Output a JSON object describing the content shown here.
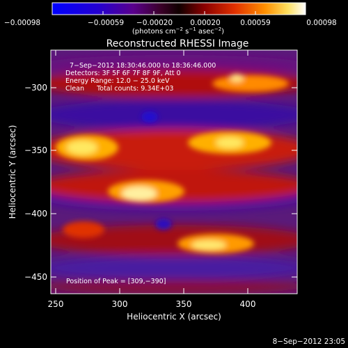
{
  "colorbar": {
    "tick_labels": [
      "−0.00098",
      "−0.00059",
      "−0.00020",
      "0.00020",
      "0.00059",
      "0.00098"
    ],
    "unit_label_parts": [
      "(photons cm",
      "−2",
      " s",
      "−1",
      " asec",
      "−2",
      ")"
    ]
  },
  "image_title": "Reconstructed RHESSI Image",
  "info_lines": [
    "7−Sep−2012 18:30:46.000 to 18:36:46.000",
    "Detectors: 3F 5F 6F 7F 8F 9F, Att 0",
    "Energy Range: 12.0 − 25.0 keV",
    "Clean      Total counts: 9.34E+03"
  ],
  "peak_label": "Position of Peak = [309,−390]",
  "x_axis": {
    "label": "Heliocentric X (arcsec)",
    "ticks": [
      "250",
      "300",
      "350",
      "400"
    ],
    "range": [
      248,
      440
    ]
  },
  "y_axis": {
    "label": "Heliocentric Y (arcsec)",
    "ticks": [
      "−300",
      "−350",
      "−400",
      "−450"
    ],
    "range": [
      -466,
      -276
    ]
  },
  "timestamp": "8−Sep−2012 23:05",
  "colors": {
    "background": "#000000",
    "text": "#ffffff"
  }
}
